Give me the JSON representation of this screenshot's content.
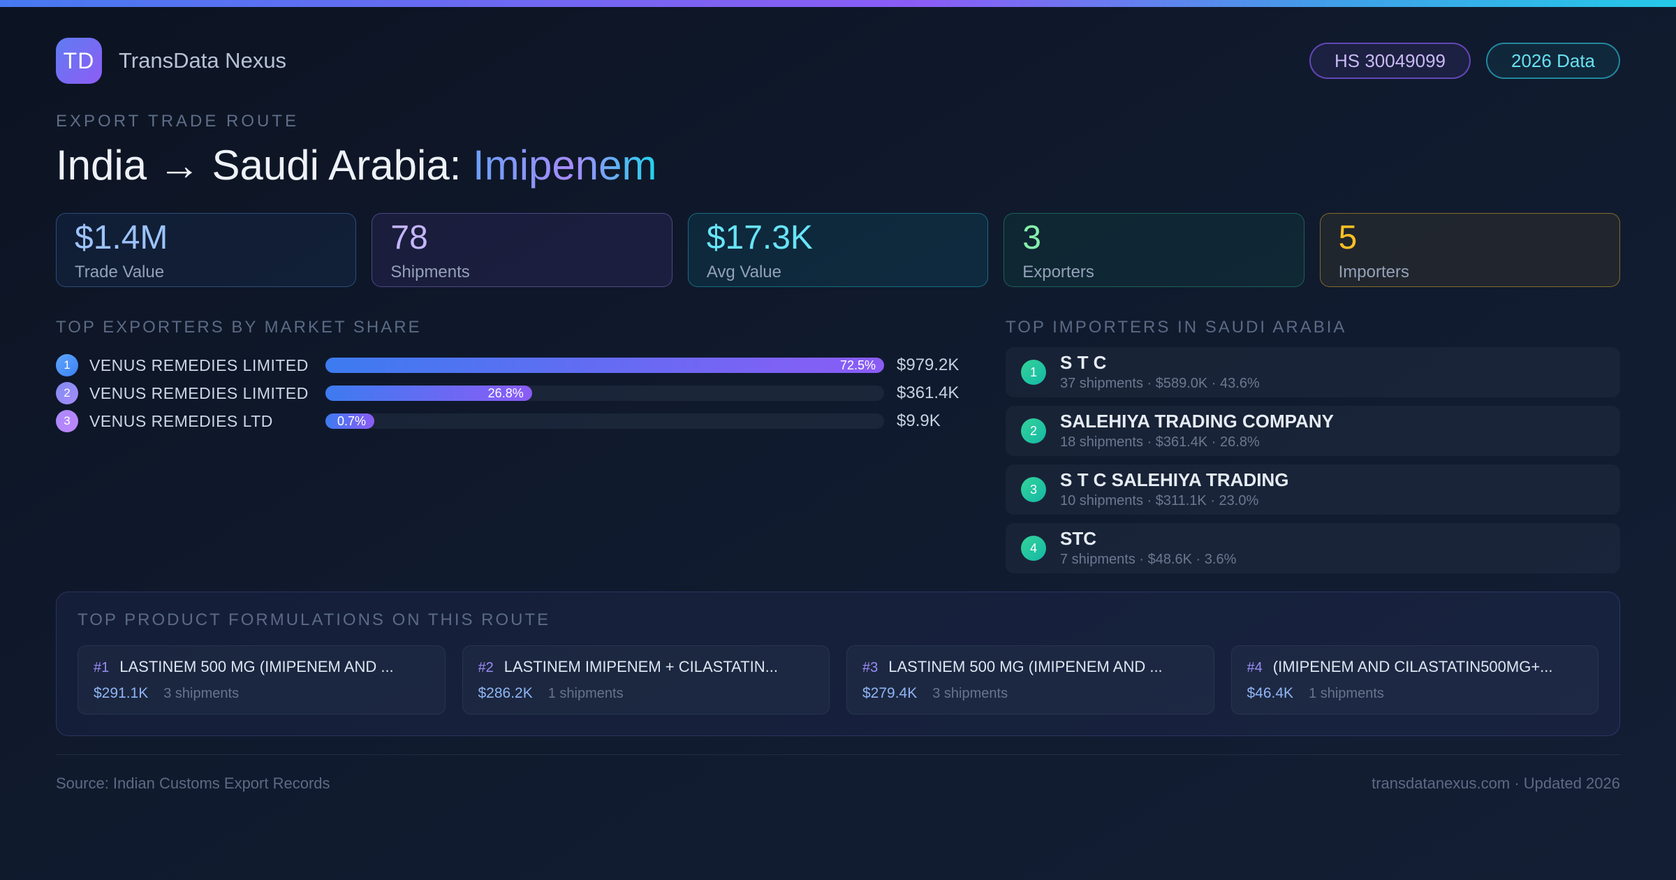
{
  "colors": {
    "accent_blue": "#3b82f6",
    "accent_purple": "#8b5cf6",
    "accent_cyan": "#22d3ee",
    "accent_green": "#34d399",
    "accent_amber": "#fbbf24"
  },
  "header": {
    "logo_text": "TD",
    "brand": "TransData Nexus",
    "badge_hs": "HS 30049099",
    "badge_year": "2026 Data"
  },
  "hero": {
    "eyebrow": "EXPORT TRADE ROUTE",
    "title_prefix": "India → Saudi Arabia:",
    "title_highlight": "Imipenem"
  },
  "stats": [
    {
      "value": "$1.4M",
      "label": "Trade Value"
    },
    {
      "value": "78",
      "label": "Shipments"
    },
    {
      "value": "$17.3K",
      "label": "Avg Value"
    },
    {
      "value": "3",
      "label": "Exporters"
    },
    {
      "value": "5",
      "label": "Importers"
    }
  ],
  "exporters": {
    "heading": "TOP EXPORTERS BY MARKET SHARE",
    "rows": [
      {
        "rank": "1",
        "name": "VENUS REMEDIES LIMITED",
        "share_pct": 72.5,
        "share_label": "72.5%",
        "value": "$979.2K"
      },
      {
        "rank": "2",
        "name": "VENUS REMEDIES LIMITED",
        "share_pct": 26.8,
        "share_label": "26.8%",
        "value": "$361.4K"
      },
      {
        "rank": "3",
        "name": "VENUS REMEDIES LTD",
        "share_pct": 0.7,
        "share_label": "0.7%",
        "value": "$9.9K"
      }
    ]
  },
  "importers": {
    "heading": "TOP IMPORTERS IN SAUDI ARABIA",
    "rows": [
      {
        "rank": "1",
        "name": "S T C",
        "meta": "37 shipments · $589.0K · 43.6%"
      },
      {
        "rank": "2",
        "name": "SALEHIYA TRADING COMPANY",
        "meta": "18 shipments · $361.4K · 26.8%"
      },
      {
        "rank": "3",
        "name": "S T C SALEHIYA TRADING",
        "meta": "10 shipments · $311.1K · 23.0%"
      },
      {
        "rank": "4",
        "name": "STC",
        "meta": "7 shipments · $48.6K · 3.6%"
      }
    ]
  },
  "formulations": {
    "heading": "TOP PRODUCT FORMULATIONS ON THIS ROUTE",
    "items": [
      {
        "rank": "#1",
        "name": "LASTINEM 500 MG (IMIPENEM AND ...",
        "value": "$291.1K",
        "shipments": "3 shipments"
      },
      {
        "rank": "#2",
        "name": "LASTINEM IMIPENEM + CILASTATIN...",
        "value": "$286.2K",
        "shipments": "1 shipments"
      },
      {
        "rank": "#3",
        "name": "LASTINEM 500 MG (IMIPENEM AND ...",
        "value": "$279.4K",
        "shipments": "3 shipments"
      },
      {
        "rank": "#4",
        "name": "(IMIPENEM AND CILASTATIN500MG+...",
        "value": "$46.4K",
        "shipments": "1 shipments"
      }
    ]
  },
  "footer": {
    "source": "Source: Indian Customs Export Records",
    "site": "transdatanexus.com · Updated 2026"
  }
}
